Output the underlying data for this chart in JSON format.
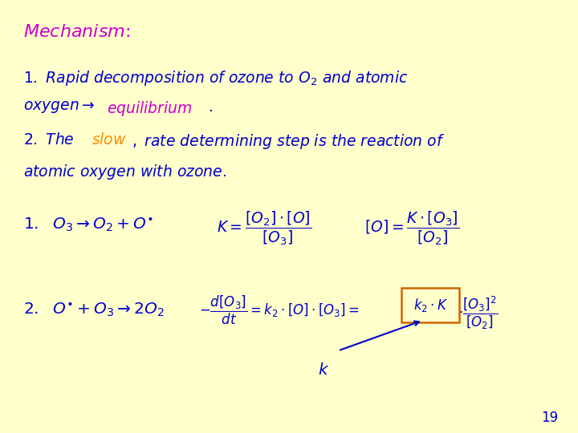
{
  "background_color": "#ffffcc",
  "blue_color": "#0000cc",
  "magenta_color": "#cc00cc",
  "orange_color": "#ff8800",
  "box_color": "#cc6600",
  "page_number": "19",
  "fig_width": 7.2,
  "fig_height": 5.4
}
